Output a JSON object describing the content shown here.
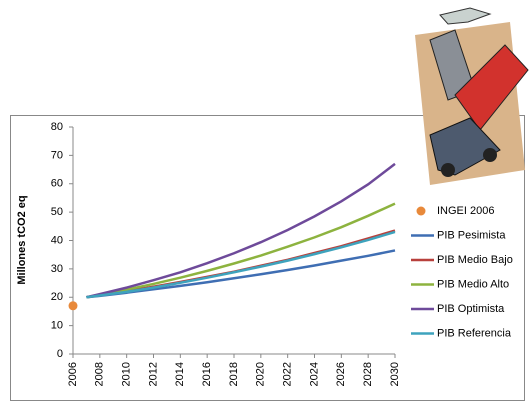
{
  "chart_data": {
    "type": "line",
    "y_label": "Millones tCO2 eq",
    "x": [
      2006,
      2007,
      2008,
      2010,
      2012,
      2014,
      2016,
      2018,
      2020,
      2022,
      2024,
      2026,
      2028,
      2030
    ],
    "xlim": [
      2006,
      2030
    ],
    "xticks": [
      2006,
      2008,
      2010,
      2012,
      2014,
      2016,
      2018,
      2020,
      2022,
      2024,
      2026,
      2028,
      2030
    ],
    "ylim": [
      0,
      80
    ],
    "yticks": [
      0,
      10,
      20,
      30,
      40,
      50,
      60,
      70,
      80
    ],
    "grid": false,
    "legend": "right",
    "series": [
      {
        "name": "INGEI 2006",
        "color": "#e8893a",
        "style": "marker",
        "values": [
          17,
          null,
          null,
          null,
          null,
          null,
          null,
          null,
          null,
          null,
          null,
          null,
          null,
          null
        ]
      },
      {
        "name": "PIB Pesimista",
        "color": "#3f6eb3",
        "style": "line",
        "values": [
          null,
          20,
          20.5,
          21.6,
          22.8,
          24.0,
          25.3,
          26.7,
          28.1,
          29.6,
          31.2,
          32.9,
          34.6,
          36.5
        ]
      },
      {
        "name": "PIB Medio Bajo",
        "color": "#b8403c",
        "style": "line",
        "values": [
          null,
          20,
          20.7,
          22.2,
          23.7,
          25.4,
          27.2,
          29.0,
          31.1,
          33.2,
          35.6,
          38.0,
          40.7,
          43.5
        ]
      },
      {
        "name": "PIB Medio Alto",
        "color": "#8db33f",
        "style": "line",
        "values": [
          null,
          20,
          20.9,
          22.7,
          24.7,
          26.9,
          29.3,
          31.9,
          34.7,
          37.8,
          41.1,
          44.7,
          48.7,
          53.0
        ]
      },
      {
        "name": "PIB Optimista",
        "color": "#6e4a9a",
        "style": "line",
        "values": [
          null,
          20,
          21.1,
          23.4,
          26.0,
          28.8,
          32.0,
          35.5,
          39.4,
          43.7,
          48.5,
          53.8,
          59.8,
          67.0
        ]
      },
      {
        "name": "PIB Referencia",
        "color": "#3ea3bd",
        "style": "line",
        "values": [
          null,
          20,
          20.6,
          21.9,
          23.4,
          25.1,
          26.9,
          28.8,
          30.8,
          32.9,
          35.2,
          37.6,
          40.2,
          43.0
        ]
      }
    ]
  }
}
